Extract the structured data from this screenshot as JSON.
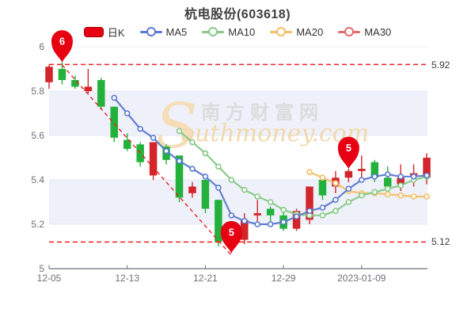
{
  "header": {
    "title": "杭电股份(603618)"
  },
  "legend": [
    {
      "label": "日K",
      "type": "candle",
      "color": "#e60012"
    },
    {
      "label": "MA5",
      "type": "line",
      "color": "#5b79cf"
    },
    {
      "label": "MA10",
      "type": "line",
      "color": "#85c985"
    },
    {
      "label": "MA20",
      "type": "line",
      "color": "#f4bd62"
    },
    {
      "label": "MA30",
      "type": "line",
      "color": "#e56a6a"
    }
  ],
  "watermark": {
    "cn": "南方财富网",
    "en": "outhmoney.com",
    "swoosh": "S"
  },
  "chart_data": {
    "type": "candlestick",
    "title": "杭电股份(603618)",
    "xlabel": "",
    "ylabel": "",
    "ylim": [
      5,
      6
    ],
    "grid": true,
    "y_ticks": [
      6,
      5.8,
      5.2,
      5.4,
      5.6,
      5
    ],
    "y_tick_order": [
      6,
      5.8,
      5.6,
      5.4,
      5.2,
      5
    ],
    "shaded_bands": [
      [
        5.8,
        5.6
      ],
      [
        5.4,
        5.2
      ]
    ],
    "x_labels": [
      {
        "label": "12-05",
        "candle": 1
      },
      {
        "label": "12-13",
        "candle": 7
      },
      {
        "label": "12-21",
        "candle": 13
      },
      {
        "label": "12-29",
        "candle": 19
      },
      {
        "label": "2023-01-09",
        "candle": 25
      }
    ],
    "colors": {
      "up": "#d2262c",
      "down": "#22b23c",
      "band": "#eef1f9",
      "grid": "#e4e8f1",
      "axis": "#6e7079",
      "dashed": "#ed2024",
      "pin": "#e60012",
      "watermark_gray": "#d9d9d9",
      "watermark_tan": "#f2d8ac"
    },
    "reference_lines": [
      {
        "price": 5.92,
        "label": "5.92"
      },
      {
        "price": 5.12,
        "label": "5.12"
      }
    ],
    "trendline": {
      "from_candle": 2,
      "from_price": 5.918,
      "to_candle": 15,
      "to_price": 5.06
    },
    "markers": [
      {
        "label": "6",
        "candle": 2,
        "price": 5.93
      },
      {
        "label": "5",
        "candle": 15,
        "price": 5.07
      },
      {
        "label": "5",
        "candle": 24,
        "price": 5.45
      }
    ],
    "candles": [
      {
        "date": "12-05",
        "open": 5.84,
        "close": 5.91,
        "high": 5.92,
        "low": 5.81
      },
      {
        "date": "12-06",
        "open": 5.9,
        "close": 5.85,
        "high": 5.93,
        "low": 5.83
      },
      {
        "date": "12-07",
        "open": 5.85,
        "close": 5.82,
        "high": 5.87,
        "low": 5.81
      },
      {
        "date": "12-08",
        "open": 5.8,
        "close": 5.82,
        "high": 5.9,
        "low": 5.79
      },
      {
        "date": "12-09",
        "open": 5.85,
        "close": 5.73,
        "high": 5.86,
        "low": 5.72
      },
      {
        "date": "12-12",
        "open": 5.73,
        "close": 5.59,
        "high": 5.73,
        "low": 5.57
      },
      {
        "date": "12-13",
        "open": 5.58,
        "close": 5.54,
        "high": 5.61,
        "low": 5.53
      },
      {
        "date": "12-14",
        "open": 5.56,
        "close": 5.48,
        "high": 5.57,
        "low": 5.46
      },
      {
        "date": "12-15",
        "open": 5.42,
        "close": 5.57,
        "high": 5.57,
        "low": 5.4
      },
      {
        "date": "12-16",
        "open": 5.55,
        "close": 5.49,
        "high": 5.56,
        "low": 5.47
      },
      {
        "date": "12-19",
        "open": 5.51,
        "close": 5.32,
        "high": 5.51,
        "low": 5.3
      },
      {
        "date": "12-20",
        "open": 5.34,
        "close": 5.37,
        "high": 5.39,
        "low": 5.32
      },
      {
        "date": "12-21",
        "open": 5.4,
        "close": 5.27,
        "high": 5.4,
        "low": 5.25
      },
      {
        "date": "12-22",
        "open": 5.31,
        "close": 5.12,
        "high": 5.31,
        "low": 5.1
      },
      {
        "date": "12-23",
        "open": 5.12,
        "close": 5.12,
        "high": 5.13,
        "low": 5.07
      },
      {
        "date": "12-26",
        "open": 5.13,
        "close": 5.22,
        "high": 5.25,
        "low": 5.11
      },
      {
        "date": "12-27",
        "open": 5.24,
        "close": 5.25,
        "high": 5.31,
        "low": 5.21
      },
      {
        "date": "12-28",
        "open": 5.27,
        "close": 5.24,
        "high": 5.28,
        "low": 5.19
      },
      {
        "date": "12-29",
        "open": 5.24,
        "close": 5.18,
        "high": 5.26,
        "low": 5.17
      },
      {
        "date": "12-30",
        "open": 5.18,
        "close": 5.26,
        "high": 5.27,
        "low": 5.17
      },
      {
        "date": "2023-01-03",
        "open": 5.22,
        "close": 5.37,
        "high": 5.37,
        "low": 5.2
      },
      {
        "date": "01-04",
        "open": 5.4,
        "close": 5.33,
        "high": 5.41,
        "low": 5.31
      },
      {
        "date": "01-05",
        "open": 5.37,
        "close": 5.41,
        "high": 5.44,
        "low": 5.34
      },
      {
        "date": "01-06",
        "open": 5.41,
        "close": 5.44,
        "high": 5.45,
        "low": 5.39
      },
      {
        "date": "01-09",
        "open": 5.44,
        "close": 5.45,
        "high": 5.51,
        "low": 5.39
      },
      {
        "date": "01-10",
        "open": 5.48,
        "close": 5.41,
        "high": 5.49,
        "low": 5.39
      },
      {
        "date": "01-11",
        "open": 5.41,
        "close": 5.37,
        "high": 5.46,
        "low": 5.35
      },
      {
        "date": "01-12",
        "open": 5.38,
        "close": 5.41,
        "high": 5.47,
        "low": 5.35
      },
      {
        "date": "01-13",
        "open": 5.42,
        "close": 5.43,
        "high": 5.47,
        "low": 5.37
      },
      {
        "date": "01-16",
        "open": 5.41,
        "close": 5.5,
        "high": 5.52,
        "low": 5.38
      }
    ],
    "series": [
      {
        "name": "MA5",
        "color": "#5b79cf",
        "start_candle": 6,
        "values": [
          5.77,
          5.7,
          5.63,
          5.59,
          5.53,
          5.485,
          5.45,
          5.415,
          5.365,
          5.24,
          5.215,
          5.2,
          5.2,
          5.21,
          5.235,
          5.26,
          5.275,
          5.31,
          5.36,
          5.4,
          5.415,
          5.425,
          5.415,
          5.415,
          5.42
        ]
      },
      {
        "name": "MA10",
        "color": "#85c985",
        "start_candle": 11,
        "values": [
          5.62,
          5.57,
          5.52,
          5.46,
          5.4,
          5.355,
          5.325,
          5.3,
          5.265,
          5.245,
          5.24,
          5.24,
          5.26,
          5.3,
          5.33,
          5.345,
          5.36,
          5.375,
          5.4,
          5.415
        ]
      },
      {
        "name": "MA20",
        "color": "#f4bd62",
        "start_candle": 21,
        "values": [
          5.435,
          5.41,
          5.385,
          5.35,
          5.34,
          5.34,
          5.335,
          5.33,
          5.325,
          5.325
        ]
      },
      {
        "name": "MA30",
        "color": "#e56a6a",
        "start_candle": 31,
        "values": []
      }
    ]
  }
}
